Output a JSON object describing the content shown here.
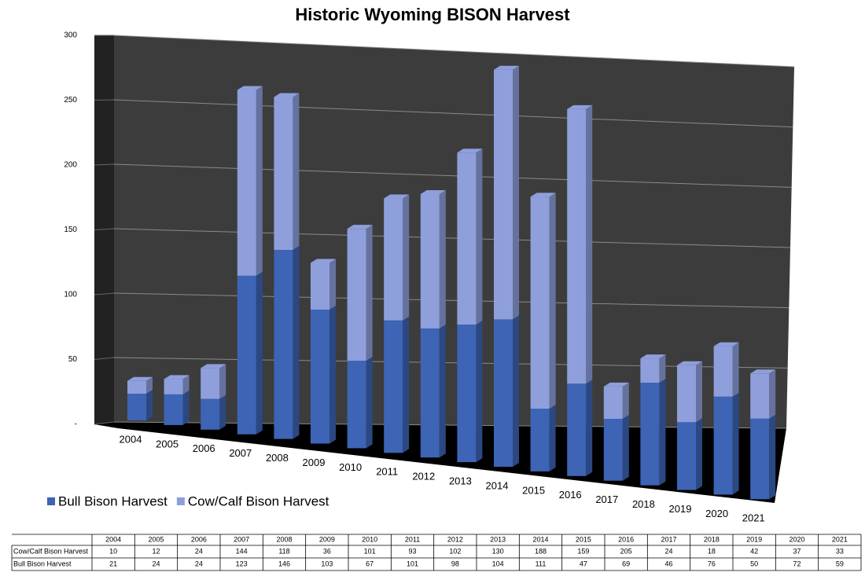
{
  "chart_data": {
    "type": "bar3d_stacked",
    "title": "Historic Wyoming BISON Harvest",
    "categories": [
      "2004",
      "2005",
      "2006",
      "2007",
      "2008",
      "2009",
      "2010",
      "2011",
      "2012",
      "2013",
      "2014",
      "2015",
      "2016",
      "2017",
      "2018",
      "2019",
      "2020",
      "2021"
    ],
    "series": [
      {
        "name": "Bull Bison Harvest",
        "color": "#3d64b5",
        "values": [
          21,
          24,
          24,
          123,
          146,
          103,
          67,
          101,
          98,
          104,
          111,
          47,
          69,
          46,
          76,
          50,
          72,
          59
        ]
      },
      {
        "name": "Cow/Calf Bison Harvest",
        "color": "#8e9fdc",
        "values": [
          10,
          12,
          24,
          144,
          118,
          36,
          101,
          93,
          102,
          130,
          188,
          159,
          205,
          24,
          18,
          42,
          37,
          33
        ]
      }
    ],
    "table_order": [
      1,
      0
    ],
    "ylim": [
      0,
      300
    ],
    "yticks": [
      {
        "value": 0,
        "label": "-"
      },
      50,
      100,
      150,
      200,
      250,
      300
    ],
    "grid": true
  }
}
